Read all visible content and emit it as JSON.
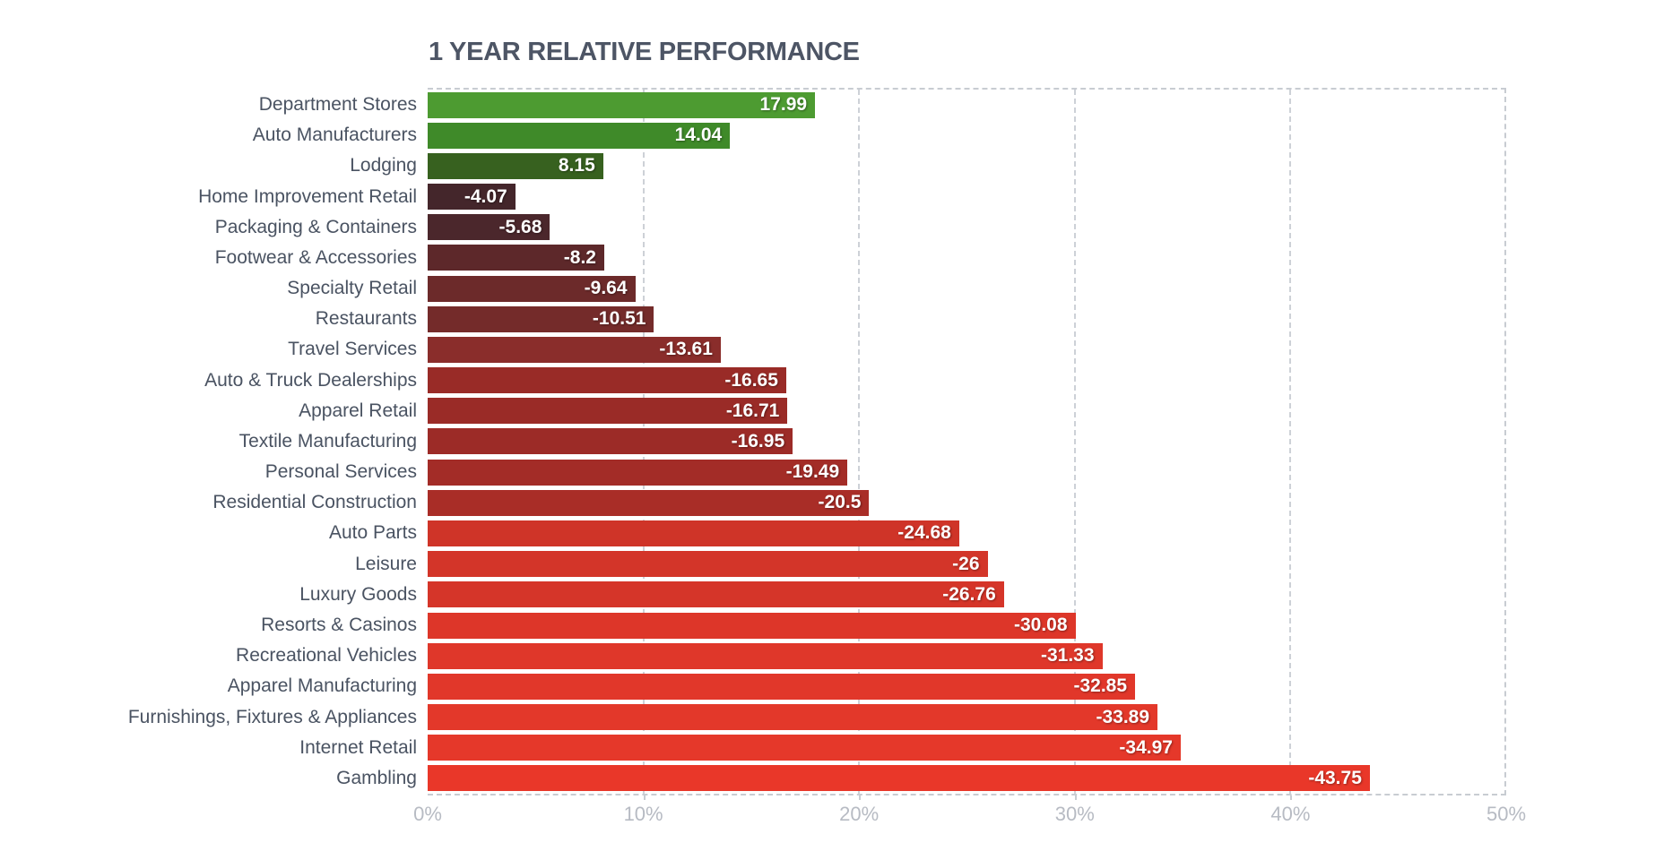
{
  "chart_data": {
    "type": "bar",
    "orientation": "horizontal",
    "title": "1 YEAR RELATIVE PERFORMANCE",
    "xlabel": "",
    "ylabel": "",
    "xlim": [
      0,
      50
    ],
    "x_tick_values": [
      0,
      10,
      20,
      30,
      40,
      50
    ],
    "x_tick_labels": [
      "0%",
      "10%",
      "20%",
      "30%",
      "40%",
      "50%"
    ],
    "grid": "dashed vertical gridlines; dashed plot border on top, right and bottom",
    "legend": "none",
    "bar_length_rule": "bar length equals absolute value of the data point on the 0-50% axis",
    "rows": [
      {
        "category": "Department Stores",
        "value": 17.99,
        "label": "17.99",
        "color": "#4d9b31"
      },
      {
        "category": "Auto Manufacturers",
        "value": 14.04,
        "label": "14.04",
        "color": "#3f8a29"
      },
      {
        "category": "Lodging",
        "value": 8.15,
        "label": "8.15",
        "color": "#37611f"
      },
      {
        "category": "Home Improvement Retail",
        "value": -4.07,
        "label": "-4.07",
        "color": "#44262b"
      },
      {
        "category": "Packaging & Containers",
        "value": -5.68,
        "label": "-5.68",
        "color": "#4b272c"
      },
      {
        "category": "Footwear & Accessories",
        "value": -8.2,
        "label": "-8.2",
        "color": "#5d282a"
      },
      {
        "category": "Specialty Retail",
        "value": -9.64,
        "label": "-9.64",
        "color": "#6c2a2a"
      },
      {
        "category": "Restaurants",
        "value": -10.51,
        "label": "-10.51",
        "color": "#742b2a"
      },
      {
        "category": "Travel Services",
        "value": -13.61,
        "label": "-13.61",
        "color": "#8a2d2b"
      },
      {
        "category": "Auto & Truck Dealerships",
        "value": -16.65,
        "label": "-16.65",
        "color": "#992b27"
      },
      {
        "category": "Apparel Retail",
        "value": -16.71,
        "label": "-16.71",
        "color": "#9a2b27"
      },
      {
        "category": "Textile Manufacturing",
        "value": -16.95,
        "label": "-16.95",
        "color": "#9c2b27"
      },
      {
        "category": "Personal Services",
        "value": -19.49,
        "label": "-19.49",
        "color": "#a32c27"
      },
      {
        "category": "Residential Construction",
        "value": -20.5,
        "label": "-20.5",
        "color": "#a92d27"
      },
      {
        "category": "Auto Parts",
        "value": -24.68,
        "label": "-24.68",
        "color": "#cf3428"
      },
      {
        "category": "Leisure",
        "value": -26,
        "label": "-26",
        "color": "#d33529"
      },
      {
        "category": "Luxury Goods",
        "value": -26.76,
        "label": "-26.76",
        "color": "#d53529"
      },
      {
        "category": "Resorts & Casinos",
        "value": -30.08,
        "label": "-30.08",
        "color": "#dd3629"
      },
      {
        "category": "Recreational Vehicles",
        "value": -31.33,
        "label": "-31.33",
        "color": "#df372a"
      },
      {
        "category": "Apparel Manufacturing",
        "value": -32.85,
        "label": "-32.85",
        "color": "#e1372a"
      },
      {
        "category": "Furnishings, Fixtures & Appliances",
        "value": -33.89,
        "label": "-33.89",
        "color": "#e3382a"
      },
      {
        "category": "Internet Retail",
        "value": -34.97,
        "label": "-34.97",
        "color": "#e5382a"
      },
      {
        "category": "Gambling",
        "value": -43.75,
        "label": "-43.75",
        "color": "#e93729"
      }
    ],
    "colors": {
      "title_text": "#4d5565",
      "category_text": "#4a5362",
      "axis_text": "#b7bbc3",
      "gridline": "#cdd1d7",
      "plot_border": "#c8ccd2",
      "value_text": "#ffffff"
    }
  }
}
